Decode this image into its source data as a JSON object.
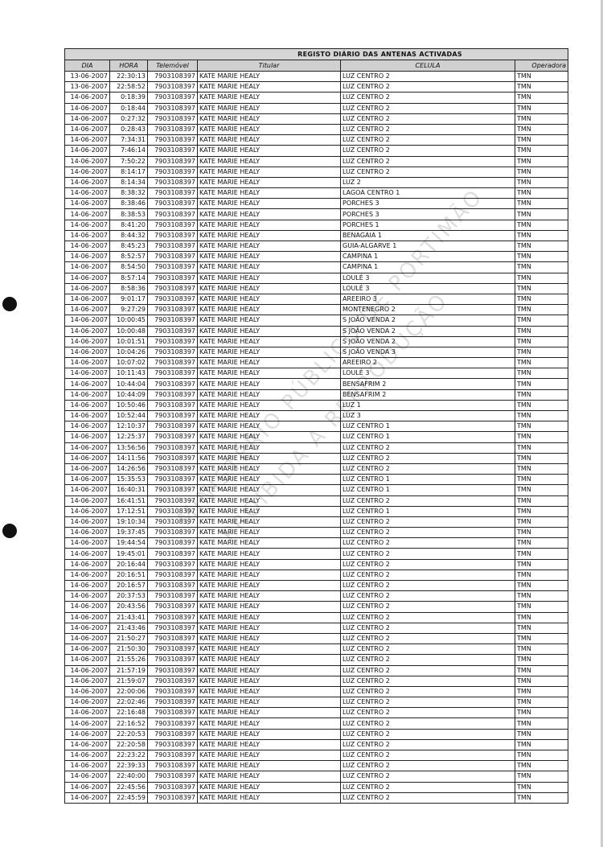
{
  "document": {
    "title": "REGISTO DIÁRIO DAS ANTENAS ACTIVADAS",
    "columns": [
      "DIA",
      "HORA",
      "Telemóvel",
      "Titular",
      "CELULA",
      "Operadora"
    ],
    "watermark": [
      "MINISTÉRIO PÚBLICO DE PORTIMÃO",
      "PROIBIDA A REPRODUÇÃO"
    ],
    "rows": [
      [
        "13-06-2007",
        "22:30:13",
        "7903108397",
        "KATE MARIE HEALY",
        "LUZ CENTRO 2",
        "TMN"
      ],
      [
        "13-06-2007",
        "22:58:52",
        "7903108397",
        "KATE MARIE HEALY",
        "LUZ CENTRO 2",
        "TMN"
      ],
      [
        "14-06-2007",
        "0:18:39",
        "7903108397",
        "KATE MARIE HEALY",
        "LUZ CENTRO 2",
        "TMN"
      ],
      [
        "14-06-2007",
        "0:18:44",
        "7903108397",
        "KATE MARIE HEALY",
        "LUZ CENTRO 2",
        "TMN"
      ],
      [
        "14-06-2007",
        "0:27:32",
        "7903108397",
        "KATE MARIE HEALY",
        "LUZ CENTRO 2",
        "TMN"
      ],
      [
        "14-06-2007",
        "0:28:43",
        "7903108397",
        "KATE MARIE HEALY",
        "LUZ CENTRO 2",
        "TMN"
      ],
      [
        "14-06-2007",
        "7:34:31",
        "7903108397",
        "KATE MARIE HEALY",
        "LUZ CENTRO 2",
        "TMN"
      ],
      [
        "14-06-2007",
        "7:46:14",
        "7903108397",
        "KATE MARIE HEALY",
        "LUZ CENTRO 2",
        "TMN"
      ],
      [
        "14-06-2007",
        "7:50:22",
        "7903108397",
        "KATE MARIE HEALY",
        "LUZ CENTRO 2",
        "TMN"
      ],
      [
        "14-06-2007",
        "8:14:17",
        "7903108397",
        "KATE MARIE HEALY",
        "LUZ CENTRO 2",
        "TMN"
      ],
      [
        "14-06-2007",
        "8:14:34",
        "7903108397",
        "KATE MARIE HEALY",
        "LUZ 2",
        "TMN"
      ],
      [
        "14-06-2007",
        "8:38:32",
        "7903108397",
        "KATE MARIE HEALY",
        "LAGOA CENTRO 1",
        "TMN"
      ],
      [
        "14-06-2007",
        "8:38:46",
        "7903108397",
        "KATE MARIE HEALY",
        "PORCHES 3",
        "TMN"
      ],
      [
        "14-06-2007",
        "8:38:53",
        "7903108397",
        "KATE MARIE HEALY",
        "PORCHES 3",
        "TMN"
      ],
      [
        "14-06-2007",
        "8:41:20",
        "7903108397",
        "KATE MARIE HEALY",
        "PORCHES 1",
        "TMN"
      ],
      [
        "14-06-2007",
        "8:44:32",
        "7903108397",
        "KATE MARIE HEALY",
        "BENAGAIA 1",
        "TMN"
      ],
      [
        "14-06-2007",
        "8:45:23",
        "7903108397",
        "KATE MARIE HEALY",
        "GUIA-ALGARVE 1",
        "TMN"
      ],
      [
        "14-06-2007",
        "8:52:57",
        "7903108397",
        "KATE MARIE HEALY",
        "CAMPINA 1",
        "TMN"
      ],
      [
        "14-06-2007",
        "8:54:50",
        "7903108397",
        "KATE MARIE HEALY",
        "CAMPINA 1",
        "TMN"
      ],
      [
        "14-06-2007",
        "8:57:14",
        "7903108397",
        "KATE MARIE HEALY",
        "LOULÉ 3",
        "TMN"
      ],
      [
        "14-06-2007",
        "8:58:36",
        "7903108397",
        "KATE MARIE HEALY",
        "LOULÉ 3",
        "TMN"
      ],
      [
        "14-06-2007",
        "9:01:17",
        "7903108397",
        "KATE MARIE HEALY",
        "AREEIRO 3",
        "TMN"
      ],
      [
        "14-06-2007",
        "9:27:29",
        "7903108397",
        "KATE MARIE HEALY",
        "MONTENEGRO 2",
        "TMN"
      ],
      [
        "14-06-2007",
        "10:00:45",
        "7903108397",
        "KATE MARIE HEALY",
        "S JOÃO VENDA 2",
        "TMN"
      ],
      [
        "14-06-2007",
        "10:00:48",
        "7903108397",
        "KATE MARIE HEALY",
        "S JOÃO VENDA 2",
        "TMN"
      ],
      [
        "14-06-2007",
        "10:01:51",
        "7903108397",
        "KATE MARIE HEALY",
        "S JOÃO VENDA 2",
        "TMN"
      ],
      [
        "14-06-2007",
        "10:04:26",
        "7903108397",
        "KATE MARIE HEALY",
        "S JOÃO VENDA 3",
        "TMN"
      ],
      [
        "14-06-2007",
        "10:07:02",
        "7903108397",
        "KATE MARIE HEALY",
        "AREEIRO 2",
        "TMN"
      ],
      [
        "14-06-2007",
        "10:11:43",
        "7903108397",
        "KATE MARIE HEALY",
        "LOULÉ 3",
        "TMN"
      ],
      [
        "14-06-2007",
        "10:44:04",
        "7903108397",
        "KATE MARIE HEALY",
        "BENSAFRIM 2",
        "TMN"
      ],
      [
        "14-06-2007",
        "10:44:09",
        "7903108397",
        "KATE MARIE HEALY",
        "BENSAFRIM 2",
        "TMN"
      ],
      [
        "14-06-2007",
        "10:50:46",
        "7903108397",
        "KATE MARIE HEALY",
        "LUZ 1",
        "TMN"
      ],
      [
        "14-06-2007",
        "10:52:44",
        "7903108397",
        "KATE MARIE HEALY",
        "LUZ 3",
        "TMN"
      ],
      [
        "14-06-2007",
        "12:10:37",
        "7903108397",
        "KATE MARIE HEALY",
        "LUZ CENTRO 1",
        "TMN"
      ],
      [
        "14-06-2007",
        "12:25:37",
        "7903108397",
        "KATE MARIE HEALY",
        "LUZ CENTRO 1",
        "TMN"
      ],
      [
        "14-06-2007",
        "13:56:56",
        "7903108397",
        "KATE MARIE HEALY",
        "LUZ CENTRO 2",
        "TMN"
      ],
      [
        "14-06-2007",
        "14:11:56",
        "7903108397",
        "KATE MARIE HEALY",
        "LUZ CENTRO 2",
        "TMN"
      ],
      [
        "14-06-2007",
        "14:26:56",
        "7903108397",
        "KATE MARIE HEALY",
        "LUZ CENTRO 2",
        "TMN"
      ],
      [
        "14-06-2007",
        "15:35:53",
        "7903108397",
        "KATE MARIE HEALY",
        "LUZ CENTRO 1",
        "TMN"
      ],
      [
        "14-06-2007",
        "16:40:31",
        "7903108397",
        "KATE MARIE HEALY",
        "LUZ CENTRO 1",
        "TMN"
      ],
      [
        "14-06-2007",
        "16:41:51",
        "7903108397",
        "KATE MARIE HEALY",
        "LUZ CENTRO 2",
        "TMN"
      ],
      [
        "14-06-2007",
        "17:12:51",
        "7903108397",
        "KATE MARIE HEALY",
        "LUZ CENTRO 1",
        "TMN"
      ],
      [
        "14-06-2007",
        "19:10:34",
        "7903108397",
        "KATE MARIE HEALY",
        "LUZ CENTRO 2",
        "TMN"
      ],
      [
        "14-06-2007",
        "19:37:45",
        "7903108397",
        "KATE MARIE HEALY",
        "LUZ CENTRO 2",
        "TMN"
      ],
      [
        "14-06-2007",
        "19:44:54",
        "7903108397",
        "KATE MARIE HEALY",
        "LUZ CENTRO 2",
        "TMN"
      ],
      [
        "14-06-2007",
        "19:45:01",
        "7903108397",
        "KATE MARIE HEALY",
        "LUZ CENTRO 2",
        "TMN"
      ],
      [
        "14-06-2007",
        "20:16:44",
        "7903108397",
        "KATE MARIE HEALY",
        "LUZ CENTRO 2",
        "TMN"
      ],
      [
        "14-06-2007",
        "20:16:51",
        "7903108397",
        "KATE MARIE HEALY",
        "LUZ CENTRO 2",
        "TMN"
      ],
      [
        "14-06-2007",
        "20:16:57",
        "7903108397",
        "KATE MARIE HEALY",
        "LUZ CENTRO 2",
        "TMN"
      ],
      [
        "14-06-2007",
        "20:37:53",
        "7903108397",
        "KATE MARIE HEALY",
        "LUZ CENTRO 2",
        "TMN"
      ],
      [
        "14-06-2007",
        "20:43:56",
        "7903108397",
        "KATE MARIE HEALY",
        "LUZ CENTRO 2",
        "TMN"
      ],
      [
        "14-06-2007",
        "21:43:41",
        "7903108397",
        "KATE MARIE HEALY",
        "LUZ CENTRO 2",
        "TMN"
      ],
      [
        "14-06-2007",
        "21:43:46",
        "7903108397",
        "KATE MARIE HEALY",
        "LUZ CENTRO 2",
        "TMN"
      ],
      [
        "14-06-2007",
        "21:50:27",
        "7903108397",
        "KATE MARIE HEALY",
        "LUZ CENTRO 2",
        "TMN"
      ],
      [
        "14-06-2007",
        "21:50:30",
        "7903108397",
        "KATE MARIE HEALY",
        "LUZ CENTRO 2",
        "TMN"
      ],
      [
        "14-06-2007",
        "21:55:26",
        "7903108397",
        "KATE MARIE HEALY",
        "LUZ CENTRO 2",
        "TMN"
      ],
      [
        "14-06-2007",
        "21:57:19",
        "7903108397",
        "KATE MARIE HEALY",
        "LUZ CENTRO 2",
        "TMN"
      ],
      [
        "14-06-2007",
        "21:59:07",
        "7903108397",
        "KATE MARIE HEALY",
        "LUZ CENTRO 2",
        "TMN"
      ],
      [
        "14-06-2007",
        "22:00:06",
        "7903108397",
        "KATE MARIE HEALY",
        "LUZ CENTRO 2",
        "TMN"
      ],
      [
        "14-06-2007",
        "22:02:46",
        "7903108397",
        "KATE MARIE HEALY",
        "LUZ CENTRO 2",
        "TMN"
      ],
      [
        "14-06-2007",
        "22:16:48",
        "7903108397",
        "KATE MARIE HEALY",
        "LUZ CENTRO 2",
        "TMN"
      ],
      [
        "14-06-2007",
        "22:16:52",
        "7903108397",
        "KATE MARIE HEALY",
        "LUZ CENTRO 2",
        "TMN"
      ],
      [
        "14-06-2007",
        "22:20:53",
        "7903108397",
        "KATE MARIE HEALY",
        "LUZ CENTRO 2",
        "TMN"
      ],
      [
        "14-06-2007",
        "22:20:58",
        "7903108397",
        "KATE MARIE HEALY",
        "LUZ CENTRO 2",
        "TMN"
      ],
      [
        "14-06-2007",
        "22:23:22",
        "7903108397",
        "KATE MARIE HEALY",
        "LUZ CENTRO 2",
        "TMN"
      ],
      [
        "14-06-2007",
        "22:39:33",
        "7903108397",
        "KATE MARIE HEALY",
        "LUZ CENTRO 2",
        "TMN"
      ],
      [
        "14-06-2007",
        "22:40:00",
        "7903108397",
        "KATE MARIE HEALY",
        "LUZ CENTRO 2",
        "TMN"
      ],
      [
        "14-06-2007",
        "22:45:56",
        "7903108397",
        "KATE MARIE HEALY",
        "LUZ CENTRO 2",
        "TMN"
      ],
      [
        "14-06-2007",
        "22:45:59",
        "7903108397",
        "KATE MARIE HEALY",
        "LUZ CENTRO 2",
        "TMN"
      ]
    ]
  }
}
